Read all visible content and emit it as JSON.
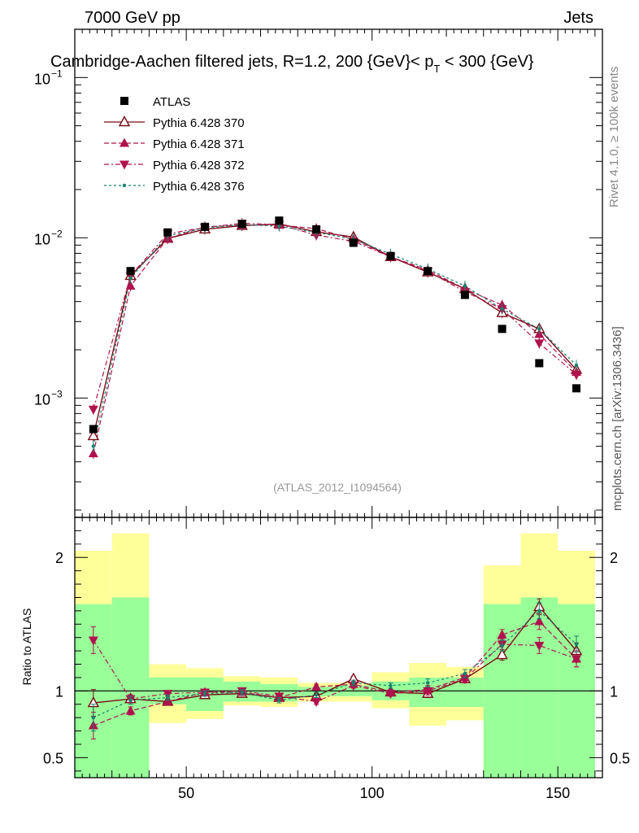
{
  "header": {
    "left": "7000 GeV pp",
    "right": "Jets",
    "title_main": "Cambridge-Aachen filtered jets, R=1.2, 200 {GeV}< p",
    "title_sub": "T",
    "title_tail": " < 300 {GeV}",
    "watermark": "(ATLAS_2012_I1094564)",
    "side_top": "Rivet 4.1.0, ≥ 100k events",
    "side_bottom": "mcplots.cern.ch [arXiv:1306.3436]"
  },
  "chart_data": {
    "type": "line",
    "xlim": [
      20,
      162
    ],
    "main": {
      "yscale": "log",
      "ylim": [
        0.00018,
        0.2
      ],
      "yticks": [
        {
          "base": "10",
          "exp": "−1",
          "value": 0.1
        },
        {
          "base": "10",
          "exp": "−2",
          "value": 0.01
        },
        {
          "base": "10",
          "exp": "−3",
          "value": 0.001
        }
      ]
    },
    "ratio": {
      "ylabel": "Ratio to ATLAS",
      "ylim": [
        0.35,
        2.3
      ],
      "yticks": [
        {
          "label": "2",
          "value": 2
        },
        {
          "label": "1",
          "value": 1
        },
        {
          "label": "0.5",
          "value": 0.5
        }
      ]
    },
    "xticks": [
      {
        "label": "50",
        "value": 50
      },
      {
        "label": "100",
        "value": 100
      },
      {
        "label": "150",
        "value": 150
      }
    ],
    "bin_edges": [
      20,
      30,
      40,
      50,
      60,
      70,
      80,
      90,
      100,
      110,
      120,
      130,
      140,
      150,
      160
    ],
    "x": [
      25,
      35,
      45,
      55,
      65,
      75,
      85,
      95,
      105,
      115,
      125,
      135,
      145,
      155
    ],
    "data": {
      "name": "ATLAS",
      "values": [
        0.00064,
        0.0062,
        0.0108,
        0.0117,
        0.0122,
        0.0128,
        0.0113,
        0.0093,
        0.0077,
        0.0062,
        0.0044,
        0.0027,
        0.00165,
        0.00115
      ],
      "band_inner": [
        [
          0.35,
          1.65
        ],
        [
          0.3,
          1.7
        ],
        [
          0.9,
          1.1
        ],
        [
          0.85,
          1.1
        ],
        [
          0.92,
          1.07
        ],
        [
          0.92,
          1.05
        ],
        [
          0.96,
          1.03
        ],
        [
          0.96,
          1.04
        ],
        [
          0.93,
          1.07
        ],
        [
          0.88,
          1.1
        ],
        [
          0.88,
          1.1
        ],
        [
          0.35,
          1.65
        ],
        [
          0.3,
          1.7
        ],
        [
          0.35,
          1.65
        ]
      ],
      "band_outer": [
        [
          0.1,
          2.05
        ],
        [
          0.1,
          2.18
        ],
        [
          0.76,
          1.2
        ],
        [
          0.79,
          1.17
        ],
        [
          0.89,
          1.11
        ],
        [
          0.88,
          1.1
        ],
        [
          0.92,
          1.06
        ],
        [
          0.92,
          1.06
        ],
        [
          0.87,
          1.14
        ],
        [
          0.74,
          1.21
        ],
        [
          0.78,
          1.18
        ],
        [
          0.1,
          1.94
        ],
        [
          0.1,
          2.18
        ],
        [
          0.1,
          2.05
        ]
      ]
    },
    "series": [
      {
        "name": "Pythia 6.428 370",
        "color": "#7a0a14",
        "marker": "triangle-open",
        "dash": "",
        "values": [
          0.00058,
          0.0058,
          0.0099,
          0.0113,
          0.0119,
          0.0122,
          0.0109,
          0.0101,
          0.0076,
          0.0061,
          0.0048,
          0.0034,
          0.0027,
          0.0015
        ],
        "ratio": [
          0.91,
          0.94,
          0.92,
          0.97,
          0.98,
          0.95,
          0.96,
          1.09,
          0.99,
          0.98,
          1.09,
          1.27,
          1.63,
          1.3
        ],
        "ratio_err": [
          0.1,
          0.03,
          0.02,
          0.02,
          0.02,
          0.02,
          0.02,
          0.02,
          0.02,
          0.03,
          0.03,
          0.04,
          0.06,
          0.06
        ]
      },
      {
        "name": "Pythia 6.428 371",
        "color": "#b0124e",
        "marker": "triangle-up",
        "dash": "6,3",
        "values": [
          0.00045,
          0.005,
          0.0099,
          0.0117,
          0.012,
          0.012,
          0.0114,
          0.0098,
          0.0076,
          0.0063,
          0.0048,
          0.0038,
          0.0025,
          0.00145
        ],
        "ratio": [
          0.74,
          0.85,
          0.92,
          0.99,
          0.99,
          0.95,
          1.03,
          1.05,
          0.99,
          1.01,
          1.1,
          1.42,
          1.52,
          1.24
        ],
        "ratio_err": [
          0.1,
          0.03,
          0.02,
          0.02,
          0.02,
          0.02,
          0.02,
          0.02,
          0.02,
          0.03,
          0.03,
          0.04,
          0.06,
          0.06
        ]
      },
      {
        "name": "Pythia 6.428 372",
        "color": "#b0124e",
        "marker": "triangle-down",
        "dash": "6,3,2,3",
        "values": [
          0.00085,
          0.0058,
          0.0106,
          0.0116,
          0.0123,
          0.0121,
          0.0104,
          0.0095,
          0.0076,
          0.0062,
          0.0046,
          0.0036,
          0.0022,
          0.0014
        ],
        "ratio": [
          1.38,
          0.94,
          0.98,
          0.99,
          1.0,
          0.96,
          0.92,
          1.04,
          0.98,
          1.0,
          1.09,
          1.35,
          1.34,
          1.24
        ],
        "ratio_err": [
          0.1,
          0.03,
          0.02,
          0.02,
          0.02,
          0.02,
          0.02,
          0.02,
          0.02,
          0.03,
          0.03,
          0.04,
          0.06,
          0.06
        ]
      },
      {
        "name": "Pythia 6.428 376",
        "color": "#13846e",
        "marker": "dot",
        "dash": "3,3",
        "values": [
          0.0005,
          0.0056,
          0.0103,
          0.0115,
          0.0121,
          0.0118,
          0.0108,
          0.0098,
          0.0079,
          0.0064,
          0.005,
          0.0036,
          0.0027,
          0.0016
        ],
        "ratio": [
          0.8,
          0.93,
          0.95,
          0.98,
          0.99,
          0.93,
          0.97,
          1.06,
          1.04,
          1.06,
          1.13,
          1.34,
          1.6,
          1.35
        ],
        "ratio_err": [
          0.1,
          0.03,
          0.02,
          0.02,
          0.02,
          0.02,
          0.02,
          0.02,
          0.02,
          0.03,
          0.03,
          0.04,
          0.06,
          0.06
        ]
      }
    ]
  }
}
